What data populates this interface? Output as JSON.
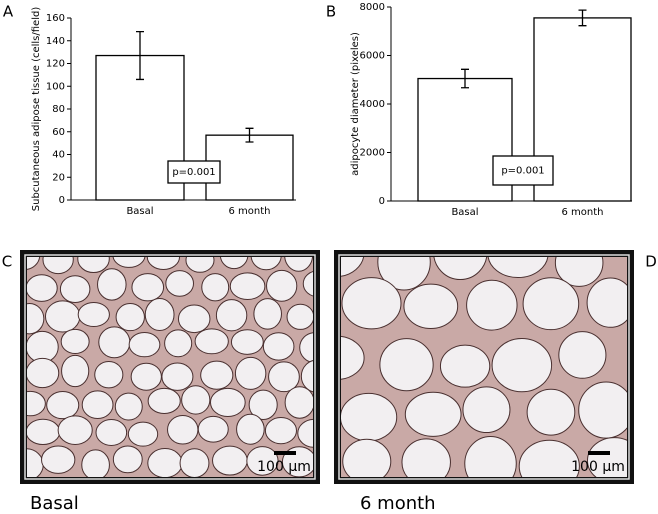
{
  "chart_data": [
    {
      "type": "bar",
      "panel": "A",
      "ylabel": "Subcutaneous adipose tissue (cells/field)",
      "categories": [
        "Basal",
        "6 month"
      ],
      "values": [
        127,
        57
      ],
      "errors": [
        21,
        6
      ],
      "color": "#ffffff",
      "ylim": [
        0,
        160
      ],
      "yticks": [
        0,
        20,
        40,
        60,
        80,
        100,
        120,
        140,
        160
      ],
      "annotation": "p=0.001"
    },
    {
      "type": "bar",
      "panel": "B",
      "ylabel": "adipocyte diameter (pixeles)",
      "categories": [
        "Basal",
        "6 month"
      ],
      "values": [
        5050,
        7550
      ],
      "errors": [
        380,
        320
      ],
      "color": "#ffffff",
      "ylim": [
        0,
        8000
      ],
      "yticks": [
        0,
        2000,
        4000,
        6000,
        8000
      ],
      "annotation": "p=0.001"
    }
  ],
  "images": [
    {
      "panel": "C",
      "caption": "Basal",
      "scale_bar": "100 µm"
    },
    {
      "panel": "D",
      "caption": "6 month",
      "scale_bar": "100 µm"
    }
  ]
}
